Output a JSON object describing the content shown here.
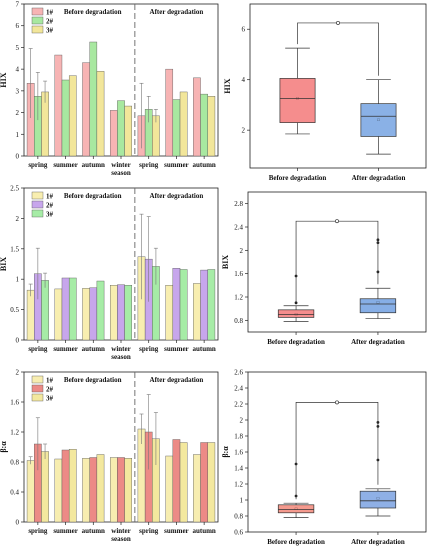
{
  "seasons": [
    "spring",
    "summer",
    "autumn",
    "winter"
  ],
  "season_axis_label": "season",
  "before_label": "Before degradation",
  "after_label": "After degradation",
  "colors": {
    "s1": "#f7b4b4",
    "s2": "#a8e8a0",
    "s3": "#f2e69a",
    "s1b": "#f8eeb0",
    "s2b": "#c7a6ec",
    "s3b": "#a6eca6",
    "s1c": "#f7edb0",
    "s2c": "#ec8a86",
    "s3c": "#f3e89e",
    "box1": "#f58d8d",
    "box2": "#8ab1e6",
    "box2b": "#86aee6",
    "box1c": "#f49a8e",
    "box2c": "#8fb0e6"
  },
  "chart_data": [
    {
      "type": "bar",
      "panel": "a",
      "ylabel": "HIX",
      "ylim": [
        0,
        7
      ],
      "yticks": [
        0,
        1,
        2,
        3,
        4,
        5,
        6,
        7
      ],
      "legend": [
        "1#",
        "2#",
        "3#"
      ],
      "before": {
        "categories": [
          "spring",
          "summer",
          "autumn",
          "winter"
        ],
        "series": [
          [
            3.35,
            4.65,
            4.3,
            2.1
          ],
          [
            2.75,
            3.5,
            5.25,
            2.55
          ],
          [
            2.95,
            3.7,
            3.9,
            2.3
          ]
        ],
        "errors": [
          [
            1.6,
            0,
            0,
            0
          ],
          [
            1.1,
            0,
            0,
            0
          ],
          [
            0.5,
            0,
            0,
            0
          ]
        ]
      },
      "after": {
        "categories": [
          "spring",
          "summer",
          "autumn"
        ],
        "series": [
          [
            1.85,
            4.0,
            3.6
          ],
          [
            2.15,
            2.6,
            2.85
          ],
          [
            1.85,
            2.95,
            2.75
          ]
        ],
        "errors": [
          [
            1.5,
            0,
            0
          ],
          [
            0.6,
            0,
            0
          ],
          [
            0.3,
            0,
            0
          ]
        ]
      }
    },
    {
      "type": "box",
      "panel": "b",
      "ylabel": "HIX",
      "ylim": [
        0.5,
        7
      ],
      "yticks": [
        2,
        4,
        6
      ],
      "categories": [
        "Before degradation",
        "After degradation"
      ],
      "boxes": [
        {
          "whisker_low": 1.85,
          "q1": 2.3,
          "median": 3.25,
          "q3": 4.05,
          "whisker_high": 5.25,
          "mean": 3.3,
          "outliers": []
        },
        {
          "whisker_low": 1.05,
          "q1": 1.75,
          "median": 2.55,
          "q3": 3.05,
          "whisker_high": 4.0,
          "mean": 2.45,
          "outliers": []
        }
      ],
      "bracket_y": 6.25
    },
    {
      "type": "bar",
      "panel": "c",
      "ylabel": "BIX",
      "ylim": [
        0,
        2.5
      ],
      "yticks": [
        0,
        0.5,
        1.0,
        1.5,
        2.0,
        2.5
      ],
      "legend": [
        "1#",
        "2#",
        "3#"
      ],
      "before": {
        "categories": [
          "spring",
          "summer",
          "autumn",
          "winter"
        ],
        "series": [
          [
            0.82,
            0.84,
            0.85,
            0.9
          ],
          [
            1.09,
            1.02,
            0.86,
            0.91
          ],
          [
            0.98,
            1.02,
            0.97,
            0.9
          ]
        ],
        "errors": [
          [
            0.1,
            0,
            0,
            0
          ],
          [
            0.42,
            0,
            0,
            0
          ],
          [
            0.12,
            0,
            0,
            0
          ]
        ]
      },
      "after": {
        "categories": [
          "spring",
          "summer",
          "autumn"
        ],
        "series": [
          [
            1.37,
            0.9,
            0.93
          ],
          [
            1.33,
            1.18,
            1.15
          ],
          [
            1.21,
            1.16,
            1.16
          ]
        ],
        "errors": [
          [
            0.7,
            0,
            0
          ],
          [
            0.7,
            0,
            0
          ],
          [
            0.3,
            0,
            0
          ]
        ]
      }
    },
    {
      "type": "box",
      "panel": "d",
      "ylabel": "BIX",
      "ylim": [
        0.6,
        3.0
      ],
      "yticks": [
        0.8,
        1.2,
        1.6,
        2.0,
        2.4,
        2.8
      ],
      "categories": [
        "Before degradation",
        "After degradation"
      ],
      "boxes": [
        {
          "whisker_low": 0.78,
          "q1": 0.85,
          "median": 0.9,
          "q3": 0.98,
          "whisker_high": 1.05,
          "mean": 0.92,
          "outliers": [
            1.1,
            1.56
          ]
        },
        {
          "whisker_low": 0.83,
          "q1": 0.93,
          "median": 1.08,
          "q3": 1.17,
          "whisker_high": 1.35,
          "mean": 1.12,
          "outliers": [
            1.63,
            2.13,
            2.18
          ]
        }
      ],
      "bracket_y": 2.5
    },
    {
      "type": "bar",
      "panel": "e",
      "ylabel": "β:α",
      "ylim": [
        0,
        2.0
      ],
      "yticks": [
        0,
        0.4,
        0.8,
        1.2,
        1.6,
        2.0
      ],
      "legend": [
        "1#",
        "2#",
        "3#"
      ],
      "before": {
        "categories": [
          "spring",
          "summer",
          "autumn",
          "winter"
        ],
        "series": [
          [
            0.82,
            0.84,
            0.85,
            0.86
          ],
          [
            1.04,
            0.96,
            0.86,
            0.86
          ],
          [
            0.94,
            0.97,
            0.9,
            0.85
          ]
        ],
        "errors": [
          [
            0.05,
            0,
            0,
            0
          ],
          [
            0.35,
            0,
            0,
            0
          ],
          [
            0.1,
            0,
            0,
            0
          ]
        ]
      },
      "after": {
        "categories": [
          "spring",
          "summer",
          "autumn"
        ],
        "series": [
          [
            1.24,
            0.88,
            0.9
          ],
          [
            1.2,
            1.1,
            1.06
          ],
          [
            1.11,
            1.06,
            1.06
          ]
        ],
        "errors": [
          [
            0.2,
            0,
            0
          ],
          [
            0.5,
            0,
            0
          ],
          [
            0.35,
            0,
            0
          ]
        ]
      }
    },
    {
      "type": "box",
      "panel": "f",
      "ylabel": "β:α",
      "ylim": [
        0.6,
        2.6
      ],
      "yticks": [
        0.6,
        0.8,
        1.0,
        1.2,
        1.4,
        1.6,
        1.8,
        2.0,
        2.2,
        2.4,
        2.6
      ],
      "categories": [
        "Before degradation",
        "After degradation"
      ],
      "boxes": [
        {
          "whisker_low": 0.78,
          "q1": 0.84,
          "median": 0.88,
          "q3": 0.94,
          "whisker_high": 0.96,
          "mean": 0.9,
          "outliers": [
            1.05,
            1.45
          ]
        },
        {
          "whisker_low": 0.8,
          "q1": 0.9,
          "median": 0.99,
          "q3": 1.11,
          "whisker_high": 1.14,
          "mean": 1.03,
          "outliers": [
            1.5,
            1.92,
            1.97
          ]
        }
      ],
      "bracket_y": 2.22
    }
  ]
}
